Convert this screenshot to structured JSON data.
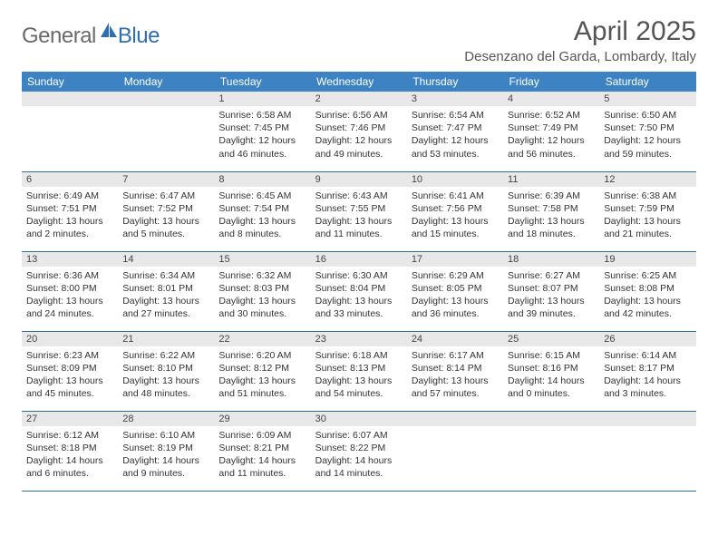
{
  "brand": {
    "general": "General",
    "blue": "Blue"
  },
  "title": "April 2025",
  "location": "Desenzano del Garda, Lombardy, Italy",
  "colors": {
    "header_bg": "#3d83c4",
    "header_text": "#ffffff",
    "band_bg": "#e8e8e8",
    "rule": "#2f6fb0",
    "logo_gray": "#6a6a6a",
    "logo_blue": "#2f6fb0",
    "page_bg": "#ffffff",
    "text": "#333333"
  },
  "weekdays": [
    "Sunday",
    "Monday",
    "Tuesday",
    "Wednesday",
    "Thursday",
    "Friday",
    "Saturday"
  ],
  "weeks": [
    [
      null,
      null,
      {
        "n": "1",
        "sr": "6:58 AM",
        "ss": "7:45 PM",
        "dl": "12 hours and 46 minutes."
      },
      {
        "n": "2",
        "sr": "6:56 AM",
        "ss": "7:46 PM",
        "dl": "12 hours and 49 minutes."
      },
      {
        "n": "3",
        "sr": "6:54 AM",
        "ss": "7:47 PM",
        "dl": "12 hours and 53 minutes."
      },
      {
        "n": "4",
        "sr": "6:52 AM",
        "ss": "7:49 PM",
        "dl": "12 hours and 56 minutes."
      },
      {
        "n": "5",
        "sr": "6:50 AM",
        "ss": "7:50 PM",
        "dl": "12 hours and 59 minutes."
      }
    ],
    [
      {
        "n": "6",
        "sr": "6:49 AM",
        "ss": "7:51 PM",
        "dl": "13 hours and 2 minutes."
      },
      {
        "n": "7",
        "sr": "6:47 AM",
        "ss": "7:52 PM",
        "dl": "13 hours and 5 minutes."
      },
      {
        "n": "8",
        "sr": "6:45 AM",
        "ss": "7:54 PM",
        "dl": "13 hours and 8 minutes."
      },
      {
        "n": "9",
        "sr": "6:43 AM",
        "ss": "7:55 PM",
        "dl": "13 hours and 11 minutes."
      },
      {
        "n": "10",
        "sr": "6:41 AM",
        "ss": "7:56 PM",
        "dl": "13 hours and 15 minutes."
      },
      {
        "n": "11",
        "sr": "6:39 AM",
        "ss": "7:58 PM",
        "dl": "13 hours and 18 minutes."
      },
      {
        "n": "12",
        "sr": "6:38 AM",
        "ss": "7:59 PM",
        "dl": "13 hours and 21 minutes."
      }
    ],
    [
      {
        "n": "13",
        "sr": "6:36 AM",
        "ss": "8:00 PM",
        "dl": "13 hours and 24 minutes."
      },
      {
        "n": "14",
        "sr": "6:34 AM",
        "ss": "8:01 PM",
        "dl": "13 hours and 27 minutes."
      },
      {
        "n": "15",
        "sr": "6:32 AM",
        "ss": "8:03 PM",
        "dl": "13 hours and 30 minutes."
      },
      {
        "n": "16",
        "sr": "6:30 AM",
        "ss": "8:04 PM",
        "dl": "13 hours and 33 minutes."
      },
      {
        "n": "17",
        "sr": "6:29 AM",
        "ss": "8:05 PM",
        "dl": "13 hours and 36 minutes."
      },
      {
        "n": "18",
        "sr": "6:27 AM",
        "ss": "8:07 PM",
        "dl": "13 hours and 39 minutes."
      },
      {
        "n": "19",
        "sr": "6:25 AM",
        "ss": "8:08 PM",
        "dl": "13 hours and 42 minutes."
      }
    ],
    [
      {
        "n": "20",
        "sr": "6:23 AM",
        "ss": "8:09 PM",
        "dl": "13 hours and 45 minutes."
      },
      {
        "n": "21",
        "sr": "6:22 AM",
        "ss": "8:10 PM",
        "dl": "13 hours and 48 minutes."
      },
      {
        "n": "22",
        "sr": "6:20 AM",
        "ss": "8:12 PM",
        "dl": "13 hours and 51 minutes."
      },
      {
        "n": "23",
        "sr": "6:18 AM",
        "ss": "8:13 PM",
        "dl": "13 hours and 54 minutes."
      },
      {
        "n": "24",
        "sr": "6:17 AM",
        "ss": "8:14 PM",
        "dl": "13 hours and 57 minutes."
      },
      {
        "n": "25",
        "sr": "6:15 AM",
        "ss": "8:16 PM",
        "dl": "14 hours and 0 minutes."
      },
      {
        "n": "26",
        "sr": "6:14 AM",
        "ss": "8:17 PM",
        "dl": "14 hours and 3 minutes."
      }
    ],
    [
      {
        "n": "27",
        "sr": "6:12 AM",
        "ss": "8:18 PM",
        "dl": "14 hours and 6 minutes."
      },
      {
        "n": "28",
        "sr": "6:10 AM",
        "ss": "8:19 PM",
        "dl": "14 hours and 9 minutes."
      },
      {
        "n": "29",
        "sr": "6:09 AM",
        "ss": "8:21 PM",
        "dl": "14 hours and 11 minutes."
      },
      {
        "n": "30",
        "sr": "6:07 AM",
        "ss": "8:22 PM",
        "dl": "14 hours and 14 minutes."
      },
      null,
      null,
      null
    ]
  ],
  "labels": {
    "sunrise": "Sunrise: ",
    "sunset": "Sunset: ",
    "daylight": "Daylight: "
  }
}
